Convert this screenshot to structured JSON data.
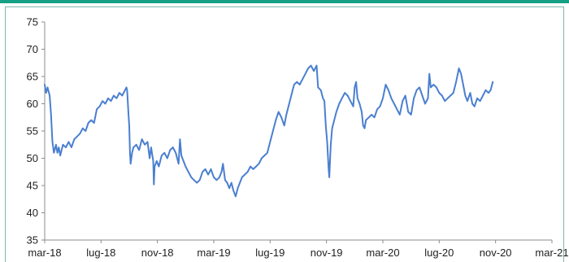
{
  "chart_data": {
    "type": "line",
    "title": "",
    "xlabel": "",
    "ylabel": "",
    "ylim": [
      35,
      75
    ],
    "yticks": [
      35,
      40,
      45,
      50,
      55,
      60,
      65,
      70,
      75
    ],
    "xticks": [
      "mar-18",
      "lug-18",
      "nov-18",
      "mar-19",
      "lug-19",
      "nov-19",
      "mar-20",
      "lug-20",
      "nov-20",
      "mar-21"
    ],
    "grid": false,
    "legend": "none",
    "line_color": "#4a7fd0",
    "x_unit": "months from mar-18",
    "series": [
      {
        "values": [
          [
            0.0,
            63.5
          ],
          [
            0.1,
            62.0
          ],
          [
            0.2,
            63.0
          ],
          [
            0.35,
            61.5
          ],
          [
            0.45,
            58.0
          ],
          [
            0.55,
            53.0
          ],
          [
            0.65,
            51.0
          ],
          [
            0.8,
            52.5
          ],
          [
            0.9,
            51.0
          ],
          [
            1.0,
            52.0
          ],
          [
            1.1,
            50.5
          ],
          [
            1.3,
            52.5
          ],
          [
            1.5,
            52.0
          ],
          [
            1.7,
            53.0
          ],
          [
            1.9,
            52.0
          ],
          [
            2.1,
            53.5
          ],
          [
            2.3,
            54.0
          ],
          [
            2.5,
            54.5
          ],
          [
            2.7,
            55.5
          ],
          [
            2.9,
            55.0
          ],
          [
            3.1,
            56.5
          ],
          [
            3.3,
            57.0
          ],
          [
            3.5,
            56.5
          ],
          [
            3.7,
            59.0
          ],
          [
            3.9,
            59.5
          ],
          [
            4.1,
            60.5
          ],
          [
            4.3,
            60.0
          ],
          [
            4.5,
            61.0
          ],
          [
            4.7,
            60.5
          ],
          [
            4.9,
            61.5
          ],
          [
            5.1,
            61.0
          ],
          [
            5.3,
            62.0
          ],
          [
            5.5,
            61.5
          ],
          [
            5.7,
            62.5
          ],
          [
            5.8,
            63.0
          ],
          [
            5.85,
            62.5
          ],
          [
            5.95,
            58.0
          ],
          [
            6.0,
            56.0
          ],
          [
            6.05,
            51.0
          ],
          [
            6.1,
            49.0
          ],
          [
            6.2,
            51.0
          ],
          [
            6.3,
            52.0
          ],
          [
            6.5,
            52.5
          ],
          [
            6.7,
            51.5
          ],
          [
            6.9,
            53.5
          ],
          [
            7.1,
            52.5
          ],
          [
            7.3,
            53.0
          ],
          [
            7.45,
            50.0
          ],
          [
            7.55,
            52.0
          ],
          [
            7.7,
            49.5
          ],
          [
            7.75,
            45.2
          ],
          [
            7.8,
            48.5
          ],
          [
            7.95,
            49.5
          ],
          [
            8.1,
            48.5
          ],
          [
            8.3,
            50.5
          ],
          [
            8.5,
            51.0
          ],
          [
            8.7,
            50.0
          ],
          [
            8.9,
            51.5
          ],
          [
            9.1,
            52.0
          ],
          [
            9.3,
            51.0
          ],
          [
            9.5,
            49.0
          ],
          [
            9.6,
            53.5
          ],
          [
            9.7,
            50.5
          ],
          [
            9.85,
            49.5
          ],
          [
            10.0,
            48.5
          ],
          [
            10.2,
            47.5
          ],
          [
            10.4,
            46.5
          ],
          [
            10.6,
            46.0
          ],
          [
            10.8,
            45.5
          ],
          [
            11.0,
            46.0
          ],
          [
            11.2,
            47.5
          ],
          [
            11.4,
            48.0
          ],
          [
            11.6,
            47.0
          ],
          [
            11.8,
            48.0
          ],
          [
            12.0,
            46.5
          ],
          [
            12.2,
            46.0
          ],
          [
            12.4,
            46.5
          ],
          [
            12.55,
            47.5
          ],
          [
            12.65,
            49.0
          ],
          [
            12.8,
            46.0
          ],
          [
            12.95,
            45.5
          ],
          [
            13.1,
            44.5
          ],
          [
            13.25,
            45.5
          ],
          [
            13.4,
            44.0
          ],
          [
            13.55,
            43.0
          ],
          [
            13.7,
            44.5
          ],
          [
            13.85,
            45.5
          ],
          [
            14.0,
            46.5
          ],
          [
            14.2,
            47.0
          ],
          [
            14.4,
            47.5
          ],
          [
            14.6,
            48.5
          ],
          [
            14.8,
            48.0
          ],
          [
            15.0,
            48.5
          ],
          [
            15.2,
            49.0
          ],
          [
            15.4,
            50.0
          ],
          [
            15.6,
            50.5
          ],
          [
            15.8,
            51.0
          ],
          [
            16.0,
            53.0
          ],
          [
            16.2,
            55.0
          ],
          [
            16.4,
            57.0
          ],
          [
            16.6,
            58.5
          ],
          [
            16.8,
            57.5
          ],
          [
            17.0,
            56.0
          ],
          [
            17.15,
            58.0
          ],
          [
            17.3,
            59.5
          ],
          [
            17.5,
            61.5
          ],
          [
            17.7,
            63.5
          ],
          [
            17.9,
            64.0
          ],
          [
            18.1,
            63.5
          ],
          [
            18.3,
            64.5
          ],
          [
            18.5,
            65.5
          ],
          [
            18.7,
            66.5
          ],
          [
            18.9,
            67.0
          ],
          [
            19.1,
            66.0
          ],
          [
            19.3,
            67.0
          ],
          [
            19.4,
            63.0
          ],
          [
            19.6,
            62.5
          ],
          [
            19.75,
            61.0
          ],
          [
            19.85,
            60.5
          ],
          [
            19.95,
            56.0
          ],
          [
            20.05,
            53.0
          ],
          [
            20.15,
            48.0
          ],
          [
            20.2,
            46.5
          ],
          [
            20.3,
            52.5
          ],
          [
            20.4,
            55.5
          ],
          [
            20.55,
            57.0
          ],
          [
            20.7,
            58.5
          ],
          [
            20.9,
            60.0
          ],
          [
            21.1,
            61.0
          ],
          [
            21.3,
            62.0
          ],
          [
            21.5,
            61.5
          ],
          [
            21.7,
            60.5
          ],
          [
            21.9,
            59.5
          ],
          [
            22.0,
            63.0
          ],
          [
            22.1,
            64.0
          ],
          [
            22.2,
            61.0
          ],
          [
            22.35,
            60.0
          ],
          [
            22.5,
            58.5
          ],
          [
            22.6,
            56.0
          ],
          [
            22.7,
            55.5
          ],
          [
            22.8,
            57.0
          ],
          [
            23.0,
            57.5
          ],
          [
            23.2,
            58.0
          ],
          [
            23.4,
            57.5
          ],
          [
            23.6,
            59.0
          ],
          [
            23.8,
            59.5
          ],
          [
            24.0,
            61.0
          ],
          [
            24.2,
            63.5
          ],
          [
            24.4,
            62.5
          ],
          [
            24.6,
            61.0
          ],
          [
            24.8,
            60.0
          ],
          [
            25.0,
            59.0
          ],
          [
            25.2,
            58.0
          ],
          [
            25.4,
            60.5
          ],
          [
            25.6,
            61.5
          ],
          [
            25.8,
            58.5
          ],
          [
            26.0,
            58.0
          ],
          [
            26.2,
            61.0
          ],
          [
            26.4,
            62.5
          ],
          [
            26.6,
            63.0
          ],
          [
            26.8,
            61.5
          ],
          [
            27.0,
            60.0
          ],
          [
            27.2,
            61.0
          ],
          [
            27.3,
            65.5
          ],
          [
            27.4,
            63.0
          ],
          [
            27.6,
            63.5
          ],
          [
            27.8,
            63.0
          ],
          [
            28.0,
            62.0
          ],
          [
            28.2,
            61.5
          ],
          [
            28.4,
            60.5
          ],
          [
            28.6,
            61.0
          ],
          [
            28.8,
            61.5
          ],
          [
            29.0,
            62.0
          ],
          [
            29.2,
            64.0
          ],
          [
            29.4,
            66.5
          ],
          [
            29.55,
            65.5
          ],
          [
            29.7,
            63.5
          ],
          [
            29.85,
            61.5
          ],
          [
            30.0,
            60.5
          ],
          [
            30.2,
            62.0
          ],
          [
            30.35,
            60.0
          ],
          [
            30.5,
            59.5
          ],
          [
            30.7,
            61.0
          ],
          [
            30.9,
            60.5
          ],
          [
            31.1,
            61.5
          ],
          [
            31.3,
            62.5
          ],
          [
            31.5,
            62.0
          ],
          [
            31.65,
            62.5
          ],
          [
            31.8,
            64.0
          ]
        ]
      }
    ]
  }
}
